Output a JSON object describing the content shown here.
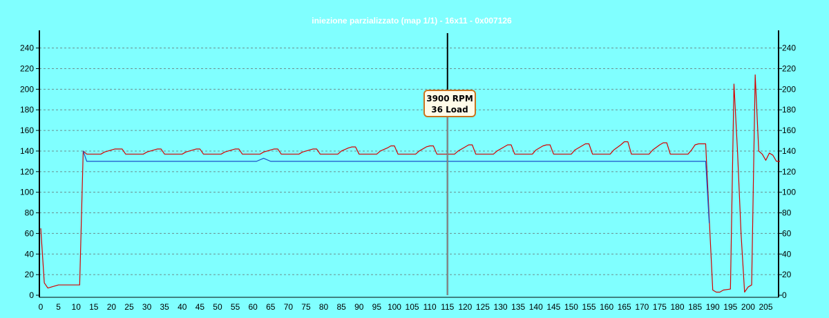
{
  "chart_data": {
    "type": "line",
    "title": "iniezione parzializzato (map 1/1) - 16x11 - 0x007126",
    "xlim": [
      0,
      209
    ],
    "ylim": [
      0,
      250
    ],
    "x_ticks": [
      0,
      5,
      10,
      15,
      20,
      25,
      30,
      35,
      40,
      45,
      50,
      55,
      60,
      65,
      70,
      75,
      80,
      85,
      90,
      95,
      100,
      105,
      110,
      115,
      120,
      125,
      130,
      135,
      140,
      145,
      150,
      155,
      160,
      165,
      170,
      175,
      180,
      185,
      190,
      195,
      200,
      205
    ],
    "y_ticks": [
      0,
      20,
      40,
      60,
      80,
      100,
      120,
      140,
      160,
      180,
      200,
      220,
      240
    ],
    "grid": "horizontal dashed",
    "colors": {
      "background": "#80ffff",
      "series_red": "#d40000",
      "series_blue": "#1a4fc8",
      "cursor": "#000000"
    },
    "series": [
      {
        "color": "#d40000",
        "points": [
          [
            0,
            65
          ],
          [
            1,
            12
          ],
          [
            2,
            7
          ],
          [
            3,
            8
          ],
          [
            4,
            9
          ],
          [
            5,
            10
          ],
          [
            11,
            10
          ],
          [
            12,
            140
          ],
          [
            13,
            137
          ],
          [
            17,
            137
          ],
          [
            18,
            139
          ],
          [
            20,
            141
          ],
          [
            21,
            142
          ],
          [
            23,
            142
          ],
          [
            24,
            137
          ],
          [
            29,
            137
          ],
          [
            30,
            139
          ],
          [
            32,
            141
          ],
          [
            33,
            142
          ],
          [
            34,
            142
          ],
          [
            35,
            137
          ],
          [
            40,
            137
          ],
          [
            41,
            139
          ],
          [
            43,
            141
          ],
          [
            44,
            142
          ],
          [
            45,
            142
          ],
          [
            46,
            137
          ],
          [
            51,
            137
          ],
          [
            52,
            139
          ],
          [
            54,
            141
          ],
          [
            55,
            142
          ],
          [
            56,
            142
          ],
          [
            57,
            137
          ],
          [
            62,
            137
          ],
          [
            63,
            139
          ],
          [
            65,
            141
          ],
          [
            66,
            142
          ],
          [
            67,
            142
          ],
          [
            68,
            137
          ],
          [
            73,
            137
          ],
          [
            74,
            139
          ],
          [
            76,
            141
          ],
          [
            77,
            142
          ],
          [
            78,
            142
          ],
          [
            79,
            137
          ],
          [
            84,
            137
          ],
          [
            85,
            140
          ],
          [
            87,
            143
          ],
          [
            88,
            144
          ],
          [
            89,
            144
          ],
          [
            90,
            137
          ],
          [
            95,
            137
          ],
          [
            96,
            140
          ],
          [
            98,
            143
          ],
          [
            99,
            145
          ],
          [
            100,
            145
          ],
          [
            101,
            137
          ],
          [
            106,
            137
          ],
          [
            107,
            140
          ],
          [
            109,
            144
          ],
          [
            110,
            145
          ],
          [
            111,
            145
          ],
          [
            112,
            137
          ],
          [
            117,
            137
          ],
          [
            118,
            140
          ],
          [
            120,
            144
          ],
          [
            121,
            146
          ],
          [
            122,
            146
          ],
          [
            123,
            137
          ],
          [
            128,
            137
          ],
          [
            129,
            140
          ],
          [
            131,
            144
          ],
          [
            132,
            146
          ],
          [
            133,
            146
          ],
          [
            134,
            137
          ],
          [
            139,
            137
          ],
          [
            140,
            141
          ],
          [
            142,
            145
          ],
          [
            143,
            146
          ],
          [
            144,
            146
          ],
          [
            145,
            137
          ],
          [
            150,
            137
          ],
          [
            151,
            141
          ],
          [
            153,
            145
          ],
          [
            154,
            147
          ],
          [
            155,
            147
          ],
          [
            156,
            137
          ],
          [
            161,
            137
          ],
          [
            162,
            141
          ],
          [
            164,
            146
          ],
          [
            165,
            149
          ],
          [
            166,
            149
          ],
          [
            167,
            137
          ],
          [
            172,
            137
          ],
          [
            173,
            141
          ],
          [
            175,
            146
          ],
          [
            176,
            148
          ],
          [
            177,
            148
          ],
          [
            178,
            137
          ],
          [
            183,
            137
          ],
          [
            184,
            141
          ],
          [
            185,
            146
          ],
          [
            186,
            147
          ],
          [
            188,
            147
          ],
          [
            189,
            75
          ],
          [
            190,
            5
          ],
          [
            191,
            3
          ],
          [
            192,
            3
          ],
          [
            193,
            5
          ],
          [
            195,
            6
          ],
          [
            196,
            205
          ],
          [
            197,
            140
          ],
          [
            198,
            60
          ],
          [
            199,
            3
          ],
          [
            200,
            8
          ],
          [
            201,
            10
          ],
          [
            202,
            214
          ],
          [
            203,
            140
          ],
          [
            204,
            137
          ],
          [
            205,
            131
          ],
          [
            206,
            138
          ],
          [
            207,
            136
          ],
          [
            208,
            130
          ],
          [
            209,
            130
          ]
        ]
      },
      {
        "color": "#1a4fc8",
        "points": [
          [
            12,
            140
          ],
          [
            13,
            130
          ],
          [
            61,
            130
          ],
          [
            63,
            133
          ],
          [
            65,
            130
          ],
          [
            188,
            130
          ],
          [
            189,
            70
          ]
        ]
      }
    ],
    "cursor": {
      "x": 115
    }
  },
  "tooltip": {
    "rpm_label": "3900 RPM",
    "load_label": "36 Load"
  }
}
